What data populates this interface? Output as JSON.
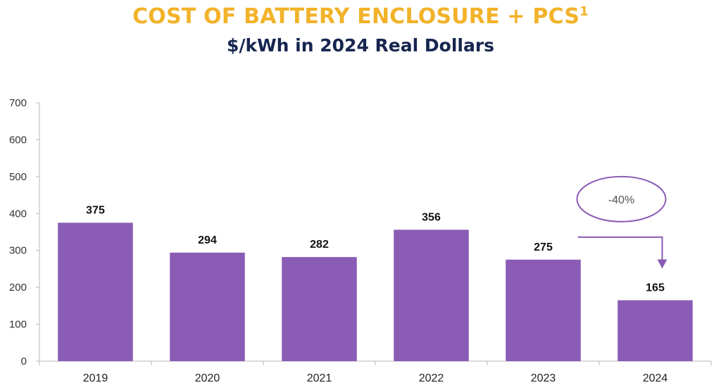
{
  "title": "COST OF BATTERY ENCLOSURE + PCS",
  "title_footnote": "1",
  "subtitle": "$/kWh in 2024 Real Dollars",
  "chart_data": {
    "type": "bar",
    "categories": [
      "2019",
      "2020",
      "2021",
      "2022",
      "2023",
      "2024"
    ],
    "values": [
      375,
      294,
      282,
      356,
      275,
      165
    ],
    "data_labels": [
      "375",
      "294",
      "282",
      "356",
      "275",
      "165"
    ],
    "ylim": [
      0,
      700
    ],
    "yticks": [
      0,
      100,
      200,
      300,
      400,
      500,
      600,
      700
    ],
    "ytick_labels": [
      "0",
      "100",
      "200",
      "300",
      "400",
      "500",
      "600",
      "700"
    ],
    "grid": false,
    "legend": false,
    "bar_color": "#8A5CB5",
    "annotation": {
      "text": "-40%",
      "from_category": "2023",
      "to_category": "2024",
      "color": "#8A5CB5"
    }
  }
}
